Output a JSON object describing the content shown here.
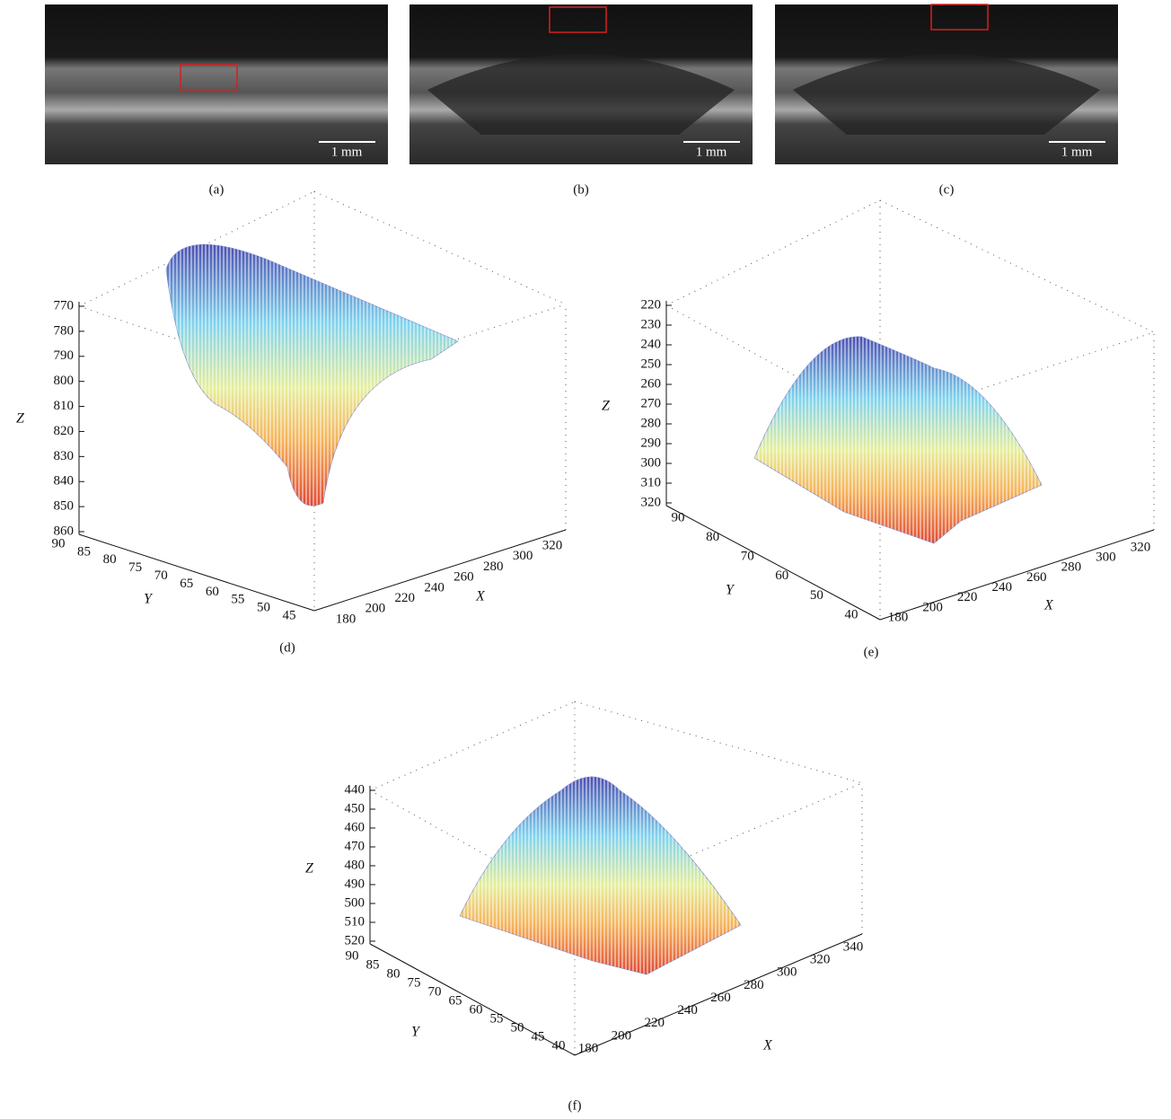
{
  "panels": [
    {
      "label": "(a)",
      "scale_bar": "1 mm"
    },
    {
      "label": "(b)",
      "scale_bar": "1 mm"
    },
    {
      "label": "(c)",
      "scale_bar": "1 mm"
    }
  ],
  "plots": [
    {
      "label": "(d)",
      "z_label": "Z",
      "y_label": "Y",
      "x_label": "X",
      "z_ticks": [
        770,
        780,
        790,
        800,
        810,
        820,
        830,
        840,
        850,
        860
      ],
      "y_ticks": [
        90,
        85,
        80,
        75,
        70,
        65,
        60,
        55,
        50,
        45
      ],
      "x_ticks": [
        180,
        200,
        220,
        240,
        260,
        280,
        300,
        320
      ]
    },
    {
      "label": "(e)",
      "z_label": "Z",
      "y_label": "Y",
      "x_label": "X",
      "z_ticks": [
        220,
        230,
        240,
        250,
        260,
        270,
        280,
        290,
        300,
        310,
        320
      ],
      "y_ticks": [
        90,
        80,
        70,
        60,
        50,
        40
      ],
      "x_ticks": [
        180,
        200,
        220,
        240,
        260,
        280,
        300,
        320
      ]
    },
    {
      "label": "(f)",
      "z_label": "Z",
      "y_label": "Y",
      "x_label": "X",
      "z_ticks": [
        440,
        450,
        460,
        470,
        480,
        490,
        500,
        510,
        520
      ],
      "y_ticks": [
        90,
        85,
        80,
        75,
        70,
        65,
        60,
        55,
        50,
        45,
        40
      ],
      "x_ticks": [
        180,
        200,
        220,
        240,
        260,
        280,
        300,
        320,
        340
      ]
    }
  ]
}
